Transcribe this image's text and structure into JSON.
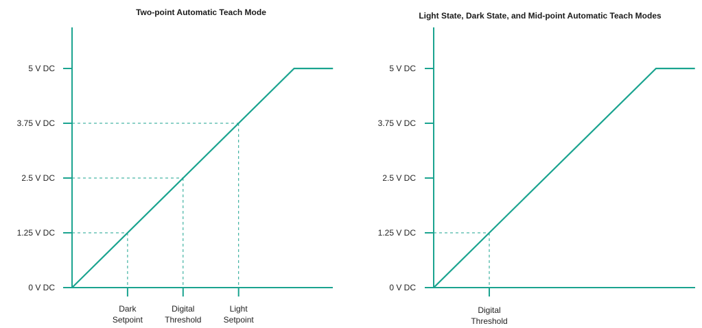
{
  "colors": {
    "curve": "#1aa38f",
    "axis": "#1aa38f",
    "guide": "#1aa38f",
    "text": "#222222"
  },
  "chart_data": [
    {
      "type": "line",
      "title": "Two-point Automatic Teach Mode",
      "yticks": [
        {
          "value": 0,
          "label": "0 V DC"
        },
        {
          "value": 1.25,
          "label": "1.25 V DC"
        },
        {
          "value": 2.5,
          "label": "2.5 V DC"
        },
        {
          "value": 3.75,
          "label": "3.75 V DC"
        },
        {
          "value": 5,
          "label": "5 V DC"
        }
      ],
      "ylim": [
        0,
        6.2
      ],
      "xlim": [
        0,
        4.7
      ],
      "series": [
        {
          "x": [
            0,
            4.0,
            4.7
          ],
          "y": [
            0,
            5,
            5
          ]
        }
      ],
      "markers": [
        {
          "x": 1.0,
          "y": 1.25,
          "label": [
            "Dark",
            "Setpoint"
          ]
        },
        {
          "x": 2.0,
          "y": 2.5,
          "label": [
            "Digital",
            "Threshold"
          ]
        },
        {
          "x": 3.0,
          "y": 3.75,
          "label": [
            "Light",
            "Setpoint"
          ]
        }
      ]
    },
    {
      "type": "line",
      "title": "Light State, Dark State, and Mid-point Automatic Teach Modes",
      "yticks": [
        {
          "value": 0,
          "label": "0 V DC"
        },
        {
          "value": 1.25,
          "label": "1.25 V DC"
        },
        {
          "value": 2.5,
          "label": "2.5 V DC"
        },
        {
          "value": 3.75,
          "label": "3.75 V DC"
        },
        {
          "value": 5,
          "label": "5 V DC"
        }
      ],
      "ylim": [
        0,
        6.2
      ],
      "xlim": [
        0,
        4.7
      ],
      "series": [
        {
          "x": [
            0,
            4.0,
            4.7
          ],
          "y": [
            0,
            5,
            5
          ]
        }
      ],
      "markers": [
        {
          "x": 1.0,
          "y": 1.25,
          "label": [
            "Digital",
            "Threshold"
          ]
        }
      ]
    }
  ]
}
